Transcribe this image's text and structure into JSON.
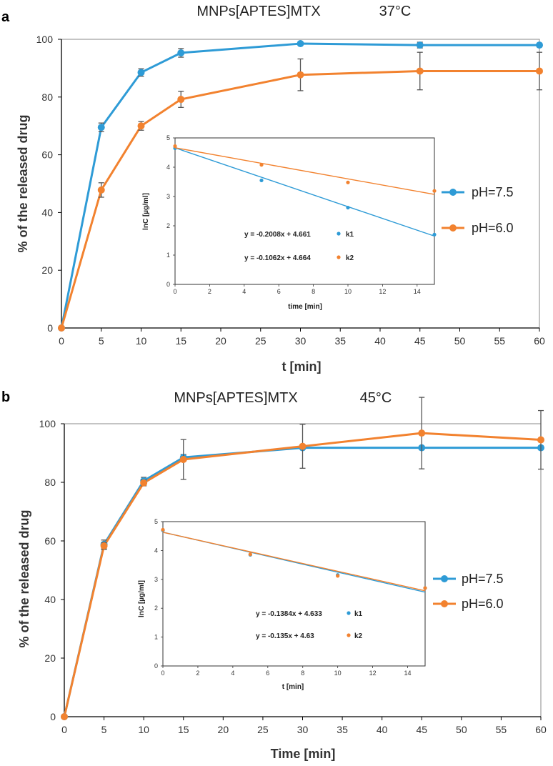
{
  "figure": {
    "colors": {
      "ph75": "#2E9BD6",
      "ph60": "#F2822F",
      "axis": "#000000",
      "errorbar": "#555555",
      "frame": "#8a8a8a"
    }
  },
  "chart_data": [
    {
      "panel_label": "a",
      "type": "line",
      "title": "MNPs[APTES]MTX",
      "temperature": "37°C",
      "xlabel": "t [min]",
      "ylabel": "% of the released drug",
      "xlim": [
        0,
        60
      ],
      "ylim": [
        0,
        100
      ],
      "xticks": [
        0,
        5,
        10,
        15,
        20,
        25,
        30,
        35,
        40,
        45,
        50,
        55,
        60
      ],
      "yticks": [
        0,
        20,
        40,
        60,
        80,
        100
      ],
      "legend_position": "right",
      "series": [
        {
          "name": "pH=7.5",
          "color": "#2E9BD6",
          "x": [
            0,
            5,
            10,
            15,
            30,
            45,
            60
          ],
          "y": [
            0,
            69.5,
            88.5,
            95.3,
            98.5,
            98,
            98
          ],
          "err": [
            0,
            1.5,
            1.3,
            1.5,
            0,
            1,
            0.5
          ]
        },
        {
          "name": "pH=6.0",
          "color": "#F2822F",
          "x": [
            0,
            5,
            10,
            15,
            30,
            45,
            60
          ],
          "y": [
            0,
            47.8,
            70,
            79.2,
            87.7,
            89,
            89
          ],
          "err": [
            0,
            2.5,
            1.5,
            2.8,
            5.5,
            6.5,
            6.5
          ]
        }
      ],
      "inset": {
        "xlabel": "time [min]",
        "ylabel": "lnC [µg/ml]",
        "xlim": [
          0,
          15
        ],
        "ylim": [
          0,
          5
        ],
        "xticks": [
          0,
          2,
          4,
          6,
          8,
          10,
          12,
          14
        ],
        "yticks": [
          0,
          1,
          2,
          3,
          4,
          5
        ],
        "series": [
          {
            "name": "k1",
            "color": "#2E9BD6",
            "x": [
              0,
              5,
              10,
              15
            ],
            "y": [
              4.65,
              3.55,
              2.62,
              1.7
            ],
            "fit_slope": -0.2008,
            "fit_intercept": 4.661,
            "equation": "y = -0.2008x + 4.661"
          },
          {
            "name": "k2",
            "color": "#F2822F",
            "x": [
              0,
              5,
              10,
              15
            ],
            "y": [
              4.72,
              4.08,
              3.48,
              3.19
            ],
            "fit_slope": -0.1062,
            "fit_intercept": 4.664,
            "equation": "y = -0.1062x + 4.664"
          }
        ]
      }
    },
    {
      "panel_label": "b",
      "type": "line",
      "title": "MNPs[APTES]MTX",
      "temperature": "45°C",
      "xlabel": "Time [min]",
      "ylabel": "% of the released drug",
      "xlim": [
        0,
        60
      ],
      "ylim": [
        0,
        100
      ],
      "xticks": [
        0,
        5,
        10,
        15,
        20,
        25,
        30,
        35,
        40,
        45,
        50,
        55,
        60
      ],
      "yticks": [
        0,
        20,
        40,
        60,
        80,
        100
      ],
      "legend_position": "right",
      "series": [
        {
          "name": "pH=7.5",
          "color": "#2E9BD6",
          "x": [
            0,
            5,
            10,
            15,
            30,
            45,
            60
          ],
          "y": [
            0,
            58.8,
            80.5,
            88.5,
            91.8,
            91.8,
            91.8
          ],
          "err": [
            0,
            1.5,
            1.2,
            1,
            0.5,
            0.5,
            0.5
          ]
        },
        {
          "name": "pH=6.0",
          "color": "#F2822F",
          "x": [
            0,
            5,
            10,
            15,
            30,
            45,
            60
          ],
          "y": [
            0,
            58.3,
            79.8,
            87.8,
            92.3,
            96.8,
            94.5
          ],
          "err": [
            0,
            1.2,
            1,
            6.8,
            7.5,
            12.2,
            10
          ]
        }
      ],
      "inset": {
        "xlabel": "t [min]",
        "ylabel": "lnC [µg/ml]",
        "xlim": [
          0,
          15
        ],
        "ylim": [
          0,
          5
        ],
        "xticks": [
          0,
          2,
          4,
          6,
          8,
          10,
          12,
          14
        ],
        "yticks": [
          0,
          1,
          2,
          3,
          4,
          5
        ],
        "series": [
          {
            "name": "k1",
            "color": "#2E9BD6",
            "x": [
              0,
              5,
              10,
              15
            ],
            "y": [
              4.7,
              3.85,
              3.15,
              2.7
            ],
            "fit_slope": -0.1384,
            "fit_intercept": 4.633,
            "equation": "y = -0.1384x + 4.633"
          },
          {
            "name": "k2",
            "color": "#F2822F",
            "x": [
              0,
              5,
              10,
              15
            ],
            "y": [
              4.72,
              3.87,
              3.12,
              2.7
            ],
            "fit_slope": -0.135,
            "fit_intercept": 4.63,
            "equation": "y = -0.135x + 4.63"
          }
        ]
      }
    }
  ]
}
